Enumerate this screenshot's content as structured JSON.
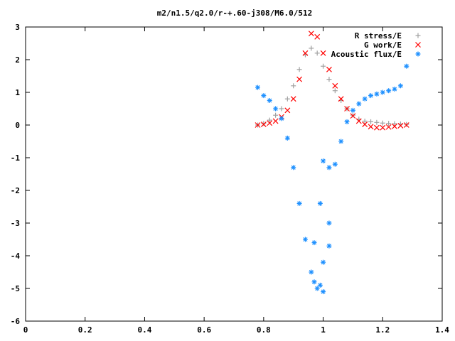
{
  "chart_data": {
    "type": "scatter",
    "title": "m2/n1.5/q2.0/r-+.60-j308/M6.0/512",
    "xlabel": "",
    "ylabel": "",
    "xlim": [
      0,
      1.4
    ],
    "ylim": [
      -6,
      3
    ],
    "x_ticks": [
      {
        "value": 0,
        "label": "0"
      },
      {
        "value": 0.2,
        "label": "0.2"
      },
      {
        "value": 0.4,
        "label": "0.4"
      },
      {
        "value": 0.6,
        "label": "0.6"
      },
      {
        "value": 0.8,
        "label": "0.8"
      },
      {
        "value": 1.0,
        "label": "1"
      },
      {
        "value": 1.2,
        "label": "1.2"
      },
      {
        "value": 1.4,
        "label": "1.4"
      }
    ],
    "y_ticks": [
      {
        "value": 3,
        "label": "3"
      },
      {
        "value": 2,
        "label": "2"
      },
      {
        "value": 1,
        "label": "1"
      },
      {
        "value": 0,
        "label": "0"
      },
      {
        "value": -1,
        "label": "-1"
      },
      {
        "value": -2,
        "label": "-2"
      },
      {
        "value": -3,
        "label": "-3"
      },
      {
        "value": -4,
        "label": "-4"
      },
      {
        "value": -5,
        "label": "-5"
      },
      {
        "value": -6,
        "label": "-6"
      }
    ],
    "grid": false,
    "legend_position": "top-right",
    "series": [
      {
        "name": "R stress/E",
        "marker": "plus",
        "color": "#a0a0a0",
        "points": [
          [
            0.78,
            0.0
          ],
          [
            0.8,
            0.05
          ],
          [
            0.82,
            0.15
          ],
          [
            0.84,
            0.3
          ],
          [
            0.86,
            0.5
          ],
          [
            0.88,
            0.8
          ],
          [
            0.9,
            1.2
          ],
          [
            0.92,
            1.7
          ],
          [
            0.94,
            2.15
          ],
          [
            0.96,
            2.35
          ],
          [
            0.98,
            2.2
          ],
          [
            1.0,
            1.8
          ],
          [
            1.02,
            1.4
          ],
          [
            1.04,
            1.05
          ],
          [
            1.06,
            0.75
          ],
          [
            1.08,
            0.5
          ],
          [
            1.1,
            0.3
          ],
          [
            1.12,
            0.18
          ],
          [
            1.14,
            0.12
          ],
          [
            1.16,
            0.1
          ],
          [
            1.18,
            0.08
          ],
          [
            1.2,
            0.06
          ],
          [
            1.22,
            0.05
          ],
          [
            1.24,
            0.04
          ],
          [
            1.26,
            0.03
          ],
          [
            1.28,
            0.02
          ]
        ]
      },
      {
        "name": "G work/E",
        "marker": "cross",
        "color": "#ff0000",
        "points": [
          [
            0.78,
            0.0
          ],
          [
            0.8,
            0.02
          ],
          [
            0.82,
            0.06
          ],
          [
            0.84,
            0.12
          ],
          [
            0.86,
            0.25
          ],
          [
            0.88,
            0.45
          ],
          [
            0.9,
            0.8
          ],
          [
            0.92,
            1.4
          ],
          [
            0.94,
            2.2
          ],
          [
            0.96,
            2.8
          ],
          [
            0.98,
            2.7
          ],
          [
            1.0,
            2.2
          ],
          [
            1.02,
            1.7
          ],
          [
            1.04,
            1.2
          ],
          [
            1.06,
            0.8
          ],
          [
            1.08,
            0.5
          ],
          [
            1.1,
            0.28
          ],
          [
            1.12,
            0.12
          ],
          [
            1.14,
            0.02
          ],
          [
            1.16,
            -0.05
          ],
          [
            1.18,
            -0.08
          ],
          [
            1.2,
            -0.08
          ],
          [
            1.22,
            -0.06
          ],
          [
            1.24,
            -0.04
          ],
          [
            1.26,
            -0.02
          ],
          [
            1.28,
            0.0
          ]
        ]
      },
      {
        "name": "Acoustic flux/E",
        "marker": "star",
        "color": "#1e90ff",
        "points": [
          [
            0.78,
            1.15
          ],
          [
            0.8,
            0.9
          ],
          [
            0.82,
            0.75
          ],
          [
            0.84,
            0.5
          ],
          [
            0.86,
            0.2
          ],
          [
            0.88,
            -0.4
          ],
          [
            0.9,
            -1.3
          ],
          [
            0.92,
            -2.4
          ],
          [
            0.94,
            -3.5
          ],
          [
            0.96,
            -4.5
          ],
          [
            0.98,
            -5.0
          ],
          [
            1.0,
            -5.1
          ],
          [
            1.0,
            -1.1
          ],
          [
            1.02,
            -1.3
          ],
          [
            1.04,
            -1.2
          ],
          [
            1.06,
            -0.5
          ],
          [
            1.08,
            0.1
          ],
          [
            1.1,
            0.45
          ],
          [
            1.12,
            0.65
          ],
          [
            1.14,
            0.8
          ],
          [
            1.16,
            0.9
          ],
          [
            1.18,
            0.95
          ],
          [
            1.2,
            1.0
          ],
          [
            1.22,
            1.05
          ],
          [
            1.24,
            1.1
          ],
          [
            1.26,
            1.2
          ],
          [
            1.28,
            1.8
          ],
          [
            0.99,
            -2.4
          ],
          [
            0.97,
            -3.6
          ],
          [
            1.02,
            -3.7
          ],
          [
            1.0,
            -4.2
          ],
          [
            0.97,
            -4.8
          ],
          [
            0.99,
            -4.9
          ],
          [
            1.02,
            -3.0
          ]
        ]
      }
    ]
  }
}
